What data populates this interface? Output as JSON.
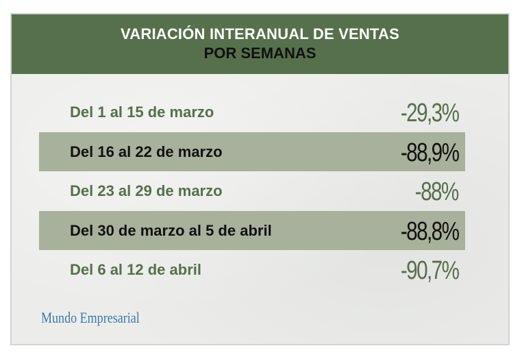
{
  "colors": {
    "header_bg": "#56704c",
    "card_bg": "#ecedea",
    "shaded_row": "#a8b19b",
    "green_text": "#55704a",
    "dark_text": "#111111",
    "source_text": "#3b77b3"
  },
  "chart_data": {
    "type": "table",
    "title": "VARIACIÓN INTERANUAL DE VENTAS",
    "subtitle": "POR SEMANAS",
    "rows": [
      {
        "label": "Del 1 al 15 de marzo",
        "value": -29.3,
        "display": "-29,3%",
        "shaded": false
      },
      {
        "label": "Del 16 al 22 de marzo",
        "value": -88.9,
        "display": "-88,9%",
        "shaded": true
      },
      {
        "label": "Del 23 al 29 de marzo",
        "value": -88,
        "display": "-88%",
        "shaded": false
      },
      {
        "label": "Del 30 de marzo al 5 de abril",
        "value": -88.8,
        "display": "-88,8%",
        "shaded": true
      },
      {
        "label": "Del 6 al 12 de abril",
        "value": -90.7,
        "display": "-90,7%",
        "shaded": false
      }
    ]
  },
  "source": "Mundo Empresarial"
}
